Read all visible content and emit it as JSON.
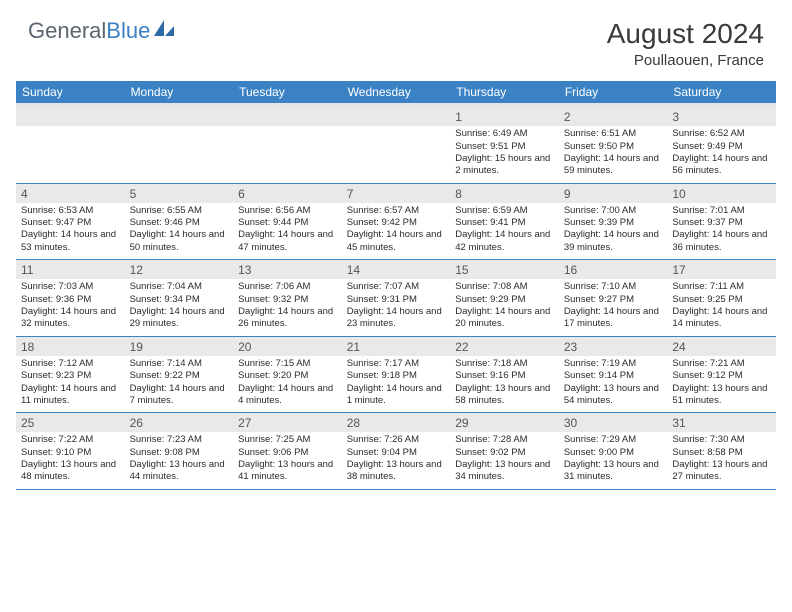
{
  "brand": {
    "part1": "General",
    "part2": "Blue"
  },
  "logo": {
    "text_color": "#5a6570",
    "accent_color": "#3b7fc4",
    "icon_color": "#2f6aa8"
  },
  "title": "August 2024",
  "subtitle": "Poullaouen, France",
  "colors": {
    "header_bg": "#3b82c4",
    "header_text": "#ffffff",
    "numrow_bg": "#e9e9e9",
    "border": "#3b82c4"
  },
  "day_headers": [
    "Sunday",
    "Monday",
    "Tuesday",
    "Wednesday",
    "Thursday",
    "Friday",
    "Saturday"
  ],
  "weeks": [
    [
      {
        "n": "",
        "sr": "",
        "ss": "",
        "dl": ""
      },
      {
        "n": "",
        "sr": "",
        "ss": "",
        "dl": ""
      },
      {
        "n": "",
        "sr": "",
        "ss": "",
        "dl": ""
      },
      {
        "n": "",
        "sr": "",
        "ss": "",
        "dl": ""
      },
      {
        "n": "1",
        "sr": "Sunrise: 6:49 AM",
        "ss": "Sunset: 9:51 PM",
        "dl": "Daylight: 15 hours and 2 minutes."
      },
      {
        "n": "2",
        "sr": "Sunrise: 6:51 AM",
        "ss": "Sunset: 9:50 PM",
        "dl": "Daylight: 14 hours and 59 minutes."
      },
      {
        "n": "3",
        "sr": "Sunrise: 6:52 AM",
        "ss": "Sunset: 9:49 PM",
        "dl": "Daylight: 14 hours and 56 minutes."
      }
    ],
    [
      {
        "n": "4",
        "sr": "Sunrise: 6:53 AM",
        "ss": "Sunset: 9:47 PM",
        "dl": "Daylight: 14 hours and 53 minutes."
      },
      {
        "n": "5",
        "sr": "Sunrise: 6:55 AM",
        "ss": "Sunset: 9:46 PM",
        "dl": "Daylight: 14 hours and 50 minutes."
      },
      {
        "n": "6",
        "sr": "Sunrise: 6:56 AM",
        "ss": "Sunset: 9:44 PM",
        "dl": "Daylight: 14 hours and 47 minutes."
      },
      {
        "n": "7",
        "sr": "Sunrise: 6:57 AM",
        "ss": "Sunset: 9:42 PM",
        "dl": "Daylight: 14 hours and 45 minutes."
      },
      {
        "n": "8",
        "sr": "Sunrise: 6:59 AM",
        "ss": "Sunset: 9:41 PM",
        "dl": "Daylight: 14 hours and 42 minutes."
      },
      {
        "n": "9",
        "sr": "Sunrise: 7:00 AM",
        "ss": "Sunset: 9:39 PM",
        "dl": "Daylight: 14 hours and 39 minutes."
      },
      {
        "n": "10",
        "sr": "Sunrise: 7:01 AM",
        "ss": "Sunset: 9:37 PM",
        "dl": "Daylight: 14 hours and 36 minutes."
      }
    ],
    [
      {
        "n": "11",
        "sr": "Sunrise: 7:03 AM",
        "ss": "Sunset: 9:36 PM",
        "dl": "Daylight: 14 hours and 32 minutes."
      },
      {
        "n": "12",
        "sr": "Sunrise: 7:04 AM",
        "ss": "Sunset: 9:34 PM",
        "dl": "Daylight: 14 hours and 29 minutes."
      },
      {
        "n": "13",
        "sr": "Sunrise: 7:06 AM",
        "ss": "Sunset: 9:32 PM",
        "dl": "Daylight: 14 hours and 26 minutes."
      },
      {
        "n": "14",
        "sr": "Sunrise: 7:07 AM",
        "ss": "Sunset: 9:31 PM",
        "dl": "Daylight: 14 hours and 23 minutes."
      },
      {
        "n": "15",
        "sr": "Sunrise: 7:08 AM",
        "ss": "Sunset: 9:29 PM",
        "dl": "Daylight: 14 hours and 20 minutes."
      },
      {
        "n": "16",
        "sr": "Sunrise: 7:10 AM",
        "ss": "Sunset: 9:27 PM",
        "dl": "Daylight: 14 hours and 17 minutes."
      },
      {
        "n": "17",
        "sr": "Sunrise: 7:11 AM",
        "ss": "Sunset: 9:25 PM",
        "dl": "Daylight: 14 hours and 14 minutes."
      }
    ],
    [
      {
        "n": "18",
        "sr": "Sunrise: 7:12 AM",
        "ss": "Sunset: 9:23 PM",
        "dl": "Daylight: 14 hours and 11 minutes."
      },
      {
        "n": "19",
        "sr": "Sunrise: 7:14 AM",
        "ss": "Sunset: 9:22 PM",
        "dl": "Daylight: 14 hours and 7 minutes."
      },
      {
        "n": "20",
        "sr": "Sunrise: 7:15 AM",
        "ss": "Sunset: 9:20 PM",
        "dl": "Daylight: 14 hours and 4 minutes."
      },
      {
        "n": "21",
        "sr": "Sunrise: 7:17 AM",
        "ss": "Sunset: 9:18 PM",
        "dl": "Daylight: 14 hours and 1 minute."
      },
      {
        "n": "22",
        "sr": "Sunrise: 7:18 AM",
        "ss": "Sunset: 9:16 PM",
        "dl": "Daylight: 13 hours and 58 minutes."
      },
      {
        "n": "23",
        "sr": "Sunrise: 7:19 AM",
        "ss": "Sunset: 9:14 PM",
        "dl": "Daylight: 13 hours and 54 minutes."
      },
      {
        "n": "24",
        "sr": "Sunrise: 7:21 AM",
        "ss": "Sunset: 9:12 PM",
        "dl": "Daylight: 13 hours and 51 minutes."
      }
    ],
    [
      {
        "n": "25",
        "sr": "Sunrise: 7:22 AM",
        "ss": "Sunset: 9:10 PM",
        "dl": "Daylight: 13 hours and 48 minutes."
      },
      {
        "n": "26",
        "sr": "Sunrise: 7:23 AM",
        "ss": "Sunset: 9:08 PM",
        "dl": "Daylight: 13 hours and 44 minutes."
      },
      {
        "n": "27",
        "sr": "Sunrise: 7:25 AM",
        "ss": "Sunset: 9:06 PM",
        "dl": "Daylight: 13 hours and 41 minutes."
      },
      {
        "n": "28",
        "sr": "Sunrise: 7:26 AM",
        "ss": "Sunset: 9:04 PM",
        "dl": "Daylight: 13 hours and 38 minutes."
      },
      {
        "n": "29",
        "sr": "Sunrise: 7:28 AM",
        "ss": "Sunset: 9:02 PM",
        "dl": "Daylight: 13 hours and 34 minutes."
      },
      {
        "n": "30",
        "sr": "Sunrise: 7:29 AM",
        "ss": "Sunset: 9:00 PM",
        "dl": "Daylight: 13 hours and 31 minutes."
      },
      {
        "n": "31",
        "sr": "Sunrise: 7:30 AM",
        "ss": "Sunset: 8:58 PM",
        "dl": "Daylight: 13 hours and 27 minutes."
      }
    ]
  ]
}
